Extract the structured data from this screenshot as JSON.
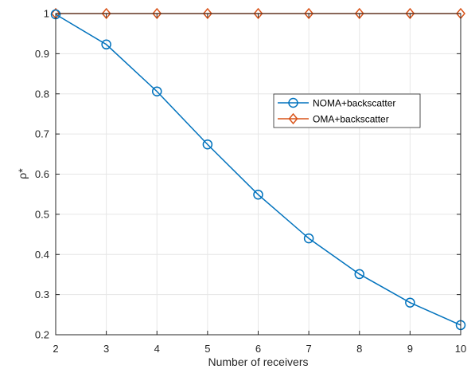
{
  "chart_data": {
    "type": "line",
    "title": "",
    "xlabel": "Number of receivers",
    "ylabel": "ρ*",
    "x": [
      2,
      3,
      4,
      5,
      6,
      7,
      8,
      9,
      10
    ],
    "xlim": [
      2,
      10
    ],
    "ylim": [
      0.2,
      1
    ],
    "xticks": [
      "2",
      "3",
      "4",
      "5",
      "6",
      "7",
      "8",
      "9",
      "10"
    ],
    "yticks": [
      "0.2",
      "0.3",
      "0.4",
      "0.5",
      "0.6",
      "0.7",
      "0.8",
      "0.9",
      "1"
    ],
    "grid": true,
    "legend_position": "upper-right, inside axes",
    "series": [
      {
        "name": "NOMA+backscatter",
        "color": "#0072BD",
        "marker": "circle",
        "values": [
          0.998,
          0.923,
          0.806,
          0.674,
          0.549,
          0.44,
          0.351,
          0.28,
          0.224
        ]
      },
      {
        "name": "OMA+backscatter",
        "color": "#D95319",
        "marker": "diamond",
        "values": [
          1,
          1,
          1,
          1,
          1,
          1,
          1,
          1,
          1
        ]
      }
    ]
  }
}
